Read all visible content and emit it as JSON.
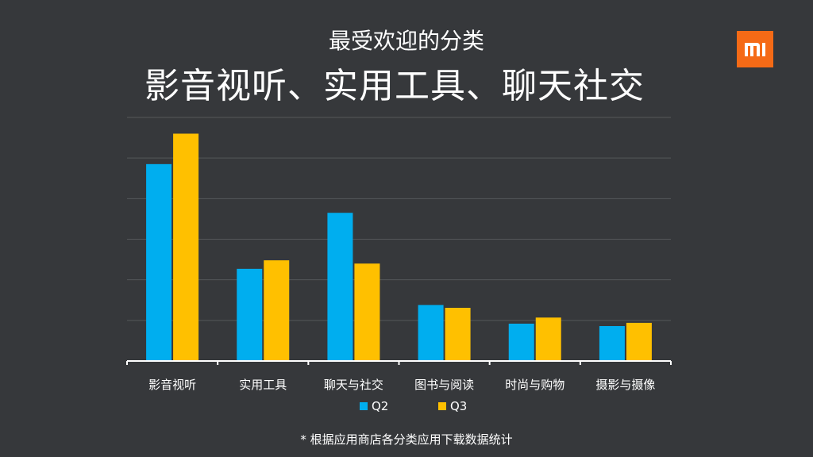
{
  "header": {
    "subtitle": "最受欢迎的分类",
    "title": "影音视听、实用工具、聊天社交",
    "logo_text": "mi"
  },
  "footnote": "* 根据应用商店各分类应用下载数据统计",
  "colors": {
    "background": "#36383b",
    "Q2": "#00aeef",
    "Q3": "#ffc000",
    "logo": "#f56a16"
  },
  "chart_data": {
    "type": "bar",
    "title": "",
    "xlabel": "",
    "ylabel": "",
    "categories": [
      "影音视听",
      "实用工具",
      "聊天与社交",
      "图书与阅读",
      "时尚与购物",
      "摄影与摄像"
    ],
    "series": [
      {
        "name": "Q2",
        "values": [
          4.85,
          2.27,
          3.65,
          1.38,
          0.92,
          0.86
        ]
      },
      {
        "name": "Q3",
        "values": [
          5.6,
          2.48,
          2.4,
          1.31,
          1.07,
          0.94
        ]
      }
    ],
    "ylim": [
      0,
      6
    ],
    "y_tick_labels_shown": false,
    "grid": true,
    "legend": "bottom"
  }
}
